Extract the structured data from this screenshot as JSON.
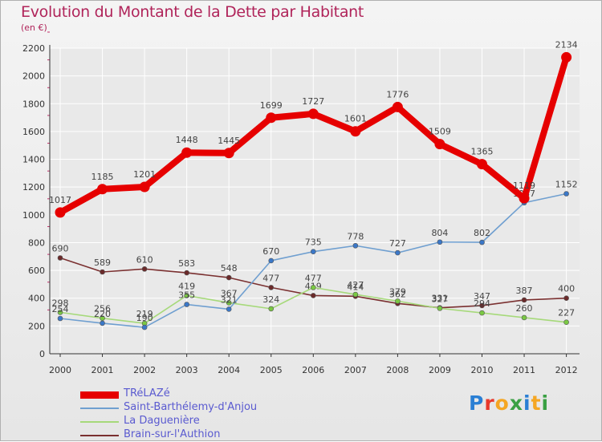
{
  "header": {
    "title": "Evolution du Montant de la Dette par Habitant",
    "unit": "(en €)"
  },
  "logo": {
    "text": "Proxiti",
    "colors": [
      "#2a7fd4",
      "#e8392c",
      "#f5a623",
      "#3aa043",
      "#2a7fd4",
      "#f5a623",
      "#3aa043"
    ]
  },
  "colors": {
    "title": "#b0245a",
    "legend_text": "#5a5ad0",
    "axis": "#333333",
    "grid": "#ffffff"
  },
  "chart_data": {
    "type": "line",
    "x": [
      "2000",
      "2001",
      "2002",
      "2003",
      "2004",
      "2005",
      "2006",
      "2007",
      "2008",
      "2009",
      "2010",
      "2011",
      "2012"
    ],
    "ylim": [
      0,
      2200
    ],
    "yticks": [
      0,
      200,
      400,
      600,
      800,
      1000,
      1200,
      1400,
      1600,
      1800,
      2000,
      2200
    ],
    "grid": true,
    "legend_position": "bottom-left",
    "series": [
      {
        "name": "TRéLAZé",
        "color": "#e60000",
        "marker": "#e60000",
        "values": [
          1017,
          1185,
          1201,
          1448,
          1445,
          1699,
          1727,
          1601,
          1776,
          1509,
          1365,
          1119,
          2134
        ],
        "labels": [
          "1017",
          "1185",
          "1201",
          "1448",
          "1445",
          "1699",
          "1727",
          "1601",
          "1776",
          "1509",
          "1365",
          "1119",
          "2134"
        ]
      },
      {
        "name": "Saint-Barthélemy-d'Anjou",
        "color": "#6f9fd0",
        "marker": "#3b78c8",
        "values": [
          254,
          220,
          190,
          355,
          321,
          670,
          735,
          778,
          727,
          804,
          802,
          1087,
          1152
        ],
        "labels": [
          "254",
          "220",
          "190",
          "355",
          "321",
          "670",
          "735",
          "778",
          "727",
          "804",
          "802",
          "1087",
          "1152"
        ]
      },
      {
        "name": "La Daguenière",
        "color": "#a6d97a",
        "marker": "#7ac943",
        "values": [
          298,
          256,
          219,
          419,
          367,
          324,
          477,
          427,
          379,
          327,
          294,
          260,
          227
        ],
        "labels": [
          "298",
          "256",
          "219",
          "419",
          "367",
          "324",
          "477",
          "427",
          "379",
          "327",
          "294",
          "260",
          "227"
        ]
      },
      {
        "name": "Brain-sur-l'Authion",
        "color": "#7a3030",
        "marker": "#6b2a2a",
        "values": [
          690,
          589,
          610,
          583,
          548,
          477,
          419,
          414,
          362,
          331,
          347,
          387,
          400
        ],
        "labels": [
          "690",
          "589",
          "610",
          "583",
          "548",
          "477",
          "419",
          "414",
          "362",
          "331",
          "347",
          "387",
          "400"
        ]
      }
    ]
  }
}
